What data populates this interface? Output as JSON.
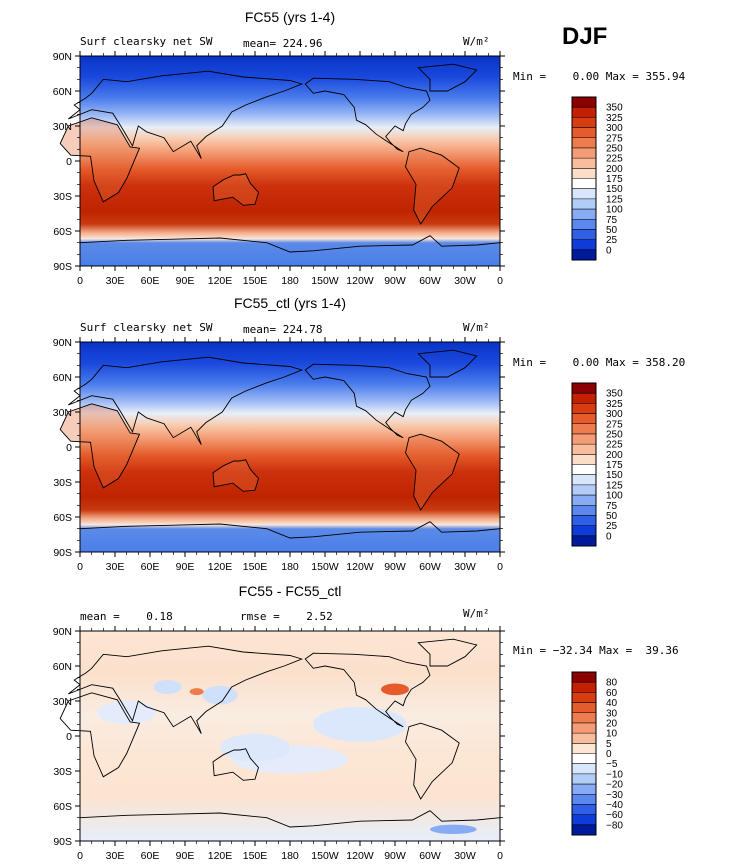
{
  "season": "DJF",
  "units": "W/m²",
  "lat_ticks": [
    "90N",
    "60N",
    "30N",
    "0",
    "30S",
    "60S",
    "90S"
  ],
  "lon_ticks": [
    "0",
    "30E",
    "60E",
    "90E",
    "120E",
    "150E",
    "180",
    "150W",
    "120W",
    "90W",
    "60W",
    "30W",
    "0"
  ],
  "chart_data": [
    {
      "type": "heatmap",
      "title": "FC55 (yrs 1-4)",
      "variable": "Surf clearsky net SW",
      "mean_text": "mean= 224.96",
      "min": 0.0,
      "max": 355.94,
      "minmax_text": "Min =    0.00 Max = 355.94",
      "colorbar_levels": [
        "350",
        "325",
        "300",
        "275",
        "250",
        "225",
        "200",
        "175",
        "150",
        "125",
        "100",
        "75",
        "50",
        "25",
        "0"
      ],
      "colorbar_colors": [
        "#8b0000",
        "#c42000",
        "#d83c12",
        "#e65b2c",
        "#ef7c4e",
        "#f49c76",
        "#f8bc9e",
        "#fcddc8",
        "#ffffff",
        "#d7e6fb",
        "#b0ccf7",
        "#87acf3",
        "#5b87ee",
        "#2e5fe6",
        "#0f3bd8",
        "#001a9c"
      ]
    },
    {
      "type": "heatmap",
      "title": "FC55_ctl (yrs 1-4)",
      "variable": "Surf clearsky net SW",
      "mean_text": "mean= 224.78",
      "min": 0.0,
      "max": 358.2,
      "minmax_text": "Min =    0.00 Max = 358.20",
      "colorbar_levels": [
        "350",
        "325",
        "300",
        "275",
        "250",
        "225",
        "200",
        "175",
        "150",
        "125",
        "100",
        "75",
        "50",
        "25",
        "0"
      ],
      "colorbar_colors": [
        "#8b0000",
        "#c42000",
        "#d83c12",
        "#e65b2c",
        "#ef7c4e",
        "#f49c76",
        "#f8bc9e",
        "#fcddc8",
        "#ffffff",
        "#d7e6fb",
        "#b0ccf7",
        "#87acf3",
        "#5b87ee",
        "#2e5fe6",
        "#0f3bd8",
        "#001a9c"
      ]
    },
    {
      "type": "heatmap",
      "title": "FC55 - FC55_ctl",
      "mean_text": "mean =    0.18",
      "rmse_text": "rmse =    2.52",
      "min": -32.34,
      "max": 39.36,
      "minmax_text": "Min = −32.34 Max =  39.36",
      "colorbar_levels": [
        "80",
        "60",
        "40",
        "30",
        "20",
        "10",
        "5",
        "0",
        "−5",
        "−10",
        "−20",
        "−30",
        "−40",
        "−60",
        "−80"
      ],
      "colorbar_colors": [
        "#8b0000",
        "#c42000",
        "#d83c12",
        "#e65b2c",
        "#ef7c4e",
        "#f49c76",
        "#f8bc9e",
        "#fde6d4",
        "#ffffff",
        "#d7e6fb",
        "#b0ccf7",
        "#87acf3",
        "#5b87ee",
        "#2e5fe6",
        "#0f3bd8",
        "#001a9c"
      ]
    }
  ]
}
